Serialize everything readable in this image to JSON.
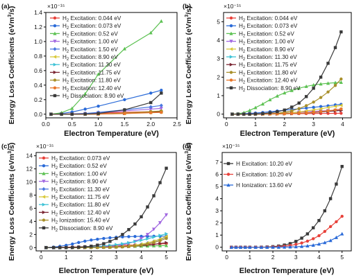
{
  "figure": {
    "y_axis_label_top": "Energy Loss Coefficients (eVm³/s)",
    "y_axis_label_bottom": "Energy Loss Coefficients (eVm³/s)",
    "x_axis_label": "Electron Temperature (eV)"
  },
  "chart_data": [
    {
      "panel_label": "(a)",
      "type": "line",
      "xlabel": "Electron Temperature (eV)",
      "ylabel": "Energy Loss Coefficients (eVm³/s)",
      "y_multiplier": "×10⁻¹⁵",
      "xlim": [
        0,
        2.5
      ],
      "ylim": [
        -0.05,
        1.4
      ],
      "xticks": [
        "0.0",
        "0.5",
        "1.0",
        "1.5",
        "2.0",
        "2.5"
      ],
      "yticks": [
        "0.0",
        "0.2",
        "0.4",
        "0.6",
        "0.8",
        "1.0",
        "1.2",
        "1.4"
      ],
      "legend_position": "left",
      "x": [
        0.1,
        0.3,
        0.5,
        0.75,
        1.0,
        1.5,
        2.0,
        2.2
      ],
      "series": [
        {
          "name": "H₂ Excitation: 0.044 eV",
          "color": "#e8413a",
          "marker": "circle",
          "values": [
            0.0,
            0.002,
            0.005,
            0.01,
            0.015,
            0.025,
            0.035,
            0.04
          ]
        },
        {
          "name": "H₂ Excitation: 0.073 eV",
          "color": "#2a6ad8",
          "marker": "circle",
          "values": [
            0.0,
            0.01,
            0.03,
            0.07,
            0.11,
            0.2,
            0.29,
            0.33
          ]
        },
        {
          "name": "H₂ Excitation: 0.52 eV",
          "color": "#5cc152",
          "marker": "triangle-up",
          "values": [
            0.0,
            0.02,
            0.08,
            0.28,
            0.55,
            0.9,
            1.12,
            1.28
          ]
        },
        {
          "name": "H₂ Excitation: 1.00 eV",
          "color": "#a066e0",
          "marker": "triangle-down",
          "values": [
            0.0,
            0.0,
            0.002,
            0.008,
            0.02,
            0.045,
            0.07,
            0.08
          ]
        },
        {
          "name": "H₂ Excitation: 1.50 eV",
          "color": "#4a78e0",
          "marker": "diamond",
          "values": [
            0.0,
            0.0,
            0.003,
            0.01,
            0.025,
            0.06,
            0.1,
            0.12
          ]
        },
        {
          "name": "H₂ Excitation: 8.90 eV",
          "color": "#d9c93a",
          "marker": "triangle-left",
          "values": [
            0.0,
            0.0,
            0.0,
            0.0,
            0.002,
            0.01,
            0.025,
            0.03
          ]
        },
        {
          "name": "H₂ Excitation: 11.30 eV",
          "color": "#3fc3d6",
          "marker": "triangle-right",
          "values": [
            0.0,
            0.0,
            0.0,
            0.0,
            0.002,
            0.012,
            0.03,
            0.04
          ]
        },
        {
          "name": "H₂ Excitation: 11.75 eV",
          "color": "#7a2432",
          "marker": "triangle-right",
          "values": [
            0.0,
            0.0,
            0.0,
            0.0,
            0.002,
            0.012,
            0.028,
            0.035
          ]
        },
        {
          "name": "H₂ Excitation: 11.80 eV",
          "color": "#a88f2a",
          "marker": "circle",
          "values": [
            0.0,
            0.0,
            0.0,
            0.0,
            0.002,
            0.015,
            0.035,
            0.045
          ]
        },
        {
          "name": "H₂ Excitation: 12.40 eV",
          "color": "#e8762a",
          "marker": "circle",
          "values": [
            0.0,
            0.0,
            0.0,
            0.0,
            0.001,
            0.008,
            0.02,
            0.025
          ]
        },
        {
          "name": "H₂ Dissociation: 8.90 eV",
          "color": "#3a3a3a",
          "marker": "square",
          "values": [
            0.0,
            0.0,
            0.0,
            0.002,
            0.01,
            0.06,
            0.16,
            0.29
          ]
        }
      ]
    },
    {
      "panel_label": "(b)",
      "type": "line",
      "xlabel": "Electron Temperature (eV)",
      "ylabel": "Energy Loss Coefficients (eVm³/s)",
      "y_multiplier": "×10⁻¹⁵",
      "xlim": [
        -0.1,
        4.3
      ],
      "ylim": [
        -0.2,
        5.5
      ],
      "xticks": [
        "0",
        "1",
        "2",
        "3",
        "4"
      ],
      "yticks": [
        "0",
        "1",
        "2",
        "3",
        "4",
        "5"
      ],
      "legend_position": "left",
      "x": [
        0.2,
        0.4,
        0.6,
        0.8,
        1.0,
        1.25,
        1.5,
        1.75,
        2.0,
        2.25,
        2.5,
        2.75,
        3.0,
        3.25,
        3.5,
        3.75,
        3.95
      ],
      "series": [
        {
          "name": "H₂ Excitation: 0.044 eV",
          "color": "#e8413a",
          "marker": "circle",
          "values": [
            0.0,
            0.002,
            0.004,
            0.006,
            0.008,
            0.011,
            0.014,
            0.017,
            0.02,
            0.023,
            0.026,
            0.03,
            0.033,
            0.036,
            0.04,
            0.043,
            0.046
          ]
        },
        {
          "name": "H₂ Excitation: 0.073 eV",
          "color": "#2a6ad8",
          "marker": "circle",
          "values": [
            0.0,
            0.01,
            0.025,
            0.04,
            0.06,
            0.09,
            0.13,
            0.17,
            0.21,
            0.25,
            0.29,
            0.33,
            0.37,
            0.41,
            0.45,
            0.5,
            0.53
          ]
        },
        {
          "name": "H₂ Excitation: 0.52 eV",
          "color": "#5cc152",
          "marker": "triangle-up",
          "values": [
            0.0,
            0.02,
            0.08,
            0.2,
            0.35,
            0.55,
            0.78,
            0.98,
            1.15,
            1.28,
            1.4,
            1.5,
            1.58,
            1.63,
            1.67,
            1.7,
            1.72
          ]
        },
        {
          "name": "H₂ Excitation: 1.00 eV",
          "color": "#a066e0",
          "marker": "triangle-down",
          "values": [
            0.0,
            0.0,
            0.002,
            0.005,
            0.01,
            0.02,
            0.035,
            0.05,
            0.07,
            0.09,
            0.11,
            0.13,
            0.15,
            0.17,
            0.19,
            0.21,
            0.22
          ]
        },
        {
          "name": "H₂ Excitation: 8.90 eV",
          "color": "#d9c93a",
          "marker": "triangle-left",
          "values": [
            0.0,
            0.0,
            0.0,
            0.0,
            0.0,
            0.005,
            0.012,
            0.025,
            0.05,
            0.08,
            0.12,
            0.17,
            0.23,
            0.29,
            0.36,
            0.42,
            0.47
          ]
        },
        {
          "name": "H₂ Excitation: 11.30 eV",
          "color": "#3fc3d6",
          "marker": "triangle-right",
          "values": [
            0.0,
            0.0,
            0.0,
            0.0,
            0.0,
            0.002,
            0.006,
            0.012,
            0.02,
            0.035,
            0.05,
            0.07,
            0.09,
            0.12,
            0.15,
            0.18,
            0.2
          ]
        },
        {
          "name": "H₂ Excitation: 11.75 eV",
          "color": "#7a2432",
          "marker": "triangle-right",
          "values": [
            0.0,
            0.0,
            0.0,
            0.0,
            0.0,
            0.002,
            0.006,
            0.012,
            0.02,
            0.035,
            0.05,
            0.07,
            0.09,
            0.12,
            0.15,
            0.18,
            0.2
          ]
        },
        {
          "name": "H₂ Excitation: 11.80 eV",
          "color": "#a88f2a",
          "marker": "circle",
          "values": [
            0.0,
            0.0,
            0.0,
            0.0,
            0.0,
            0.005,
            0.02,
            0.05,
            0.1,
            0.18,
            0.3,
            0.46,
            0.65,
            0.9,
            1.2,
            1.55,
            1.9
          ]
        },
        {
          "name": "H₂ Excitation: 12.40 eV",
          "color": "#e8762a",
          "marker": "circle",
          "values": [
            0.0,
            0.0,
            0.0,
            0.0,
            0.0,
            0.002,
            0.006,
            0.012,
            0.02,
            0.035,
            0.05,
            0.07,
            0.1,
            0.14,
            0.18,
            0.23,
            0.28
          ]
        },
        {
          "name": "H₂ Dissociation: 8.90 eV",
          "color": "#3a3a3a",
          "marker": "square",
          "values": [
            0.0,
            0.0,
            0.0,
            0.0,
            0.01,
            0.03,
            0.07,
            0.13,
            0.22,
            0.38,
            0.6,
            0.95,
            1.4,
            2.0,
            2.75,
            3.6,
            4.45
          ]
        }
      ]
    },
    {
      "panel_label": "(c)",
      "type": "line",
      "xlabel": "Electron Temperature (eV)",
      "ylabel": "Energy Loss Coefficients (eVm³/s)",
      "y_multiplier": "×10⁻¹⁵",
      "xlim": [
        -0.2,
        5.4
      ],
      "ylim": [
        -0.5,
        14.5
      ],
      "xticks": [
        "0",
        "1",
        "2",
        "3",
        "4",
        "5"
      ],
      "yticks": [
        "0",
        "2",
        "4",
        "6",
        "8",
        "10",
        "12",
        "14"
      ],
      "legend_position": "left",
      "x": [
        0.2,
        0.5,
        0.75,
        1.0,
        1.25,
        1.5,
        1.75,
        2.0,
        2.25,
        2.5,
        2.75,
        3.0,
        3.25,
        3.5,
        3.75,
        4.0,
        4.25,
        4.5,
        4.75,
        5.0
      ],
      "series": [
        {
          "name": "H₂ Excitation: 0.073 eV",
          "color": "#e8413a",
          "marker": "circle",
          "values": [
            0.0,
            0.02,
            0.04,
            0.06,
            0.08,
            0.11,
            0.14,
            0.17,
            0.2,
            0.23,
            0.26,
            0.3,
            0.33,
            0.37,
            0.41,
            0.45,
            0.49,
            0.53,
            0.57,
            0.61
          ]
        },
        {
          "name": "H₂ Excitation: 0.52 eV",
          "color": "#2a6ad8",
          "marker": "circle",
          "values": [
            0.0,
            0.08,
            0.2,
            0.35,
            0.55,
            0.78,
            0.98,
            1.15,
            1.28,
            1.4,
            1.5,
            1.58,
            1.63,
            1.67,
            1.7,
            1.72,
            1.73,
            1.74,
            1.74,
            1.74
          ]
        },
        {
          "name": "H₂ Excitation: 1.00 eV",
          "color": "#5cc152",
          "marker": "triangle-up",
          "values": [
            0.0,
            0.002,
            0.005,
            0.01,
            0.02,
            0.035,
            0.05,
            0.07,
            0.09,
            0.11,
            0.13,
            0.15,
            0.17,
            0.19,
            0.21,
            0.23,
            0.25,
            0.27,
            0.29,
            0.31
          ]
        },
        {
          "name": "H₂ Excitation: 8.90 eV",
          "color": "#a066e0",
          "marker": "triangle-down",
          "values": [
            0.0,
            0.0,
            0.0,
            0.0,
            0.005,
            0.012,
            0.025,
            0.05,
            0.08,
            0.13,
            0.2,
            0.3,
            0.45,
            0.65,
            0.95,
            1.4,
            2.0,
            2.8,
            3.8,
            5.0
          ]
        },
        {
          "name": "H₂ Excitation: 11.30 eV",
          "color": "#4a78e0",
          "marker": "diamond",
          "values": [
            0.0,
            0.0,
            0.0,
            0.0,
            0.002,
            0.006,
            0.012,
            0.02,
            0.035,
            0.05,
            0.08,
            0.12,
            0.18,
            0.25,
            0.35,
            0.5,
            0.7,
            0.95,
            1.25,
            1.6
          ]
        },
        {
          "name": "H₂ Excitation: 11.75 eV",
          "color": "#d9c93a",
          "marker": "triangle-left",
          "values": [
            0.0,
            0.0,
            0.0,
            0.0,
            0.002,
            0.006,
            0.012,
            0.02,
            0.035,
            0.05,
            0.08,
            0.12,
            0.18,
            0.26,
            0.37,
            0.52,
            0.72,
            0.98,
            1.3,
            1.7
          ]
        },
        {
          "name": "H₂ Excitation: 11.80 eV",
          "color": "#3fc3d6",
          "marker": "triangle-right",
          "values": [
            0.0,
            0.0,
            0.0,
            0.0,
            0.005,
            0.02,
            0.05,
            0.1,
            0.16,
            0.24,
            0.34,
            0.45,
            0.58,
            0.74,
            0.92,
            1.12,
            1.35,
            1.6,
            1.85,
            2.1
          ]
        },
        {
          "name": "H₂ Excitation: 12.40 eV",
          "color": "#7a2432",
          "marker": "triangle-right",
          "values": [
            0.0,
            0.0,
            0.0,
            0.0,
            0.002,
            0.006,
            0.012,
            0.02,
            0.035,
            0.05,
            0.07,
            0.1,
            0.14,
            0.19,
            0.25,
            0.32,
            0.4,
            0.5,
            0.62,
            0.75
          ]
        },
        {
          "name": "H₂ Ionization: 15.40 eV",
          "color": "#a88f2a",
          "marker": "circle",
          "values": [
            0.0,
            0.0,
            0.0,
            0.0,
            0.0,
            0.0,
            0.002,
            0.005,
            0.01,
            0.02,
            0.035,
            0.06,
            0.1,
            0.16,
            0.25,
            0.38,
            0.55,
            0.78,
            1.05,
            1.4
          ]
        },
        {
          "name": "H₂ Dissociation: 8.90 eV",
          "color": "#3a3a3a",
          "marker": "square",
          "values": [
            0.0,
            0.0,
            0.0,
            0.01,
            0.03,
            0.07,
            0.13,
            0.22,
            0.38,
            0.6,
            0.95,
            1.4,
            2.0,
            2.75,
            3.6,
            4.7,
            6.2,
            7.9,
            9.9,
            12.1
          ]
        }
      ]
    },
    {
      "panel_label": "(d)",
      "type": "line",
      "xlabel": "Electron Temperature (eV)",
      "ylabel": "Energy Loss Coefficients (eVm³/s)",
      "y_multiplier": "×10⁻¹⁵",
      "xlim": [
        -0.2,
        5.4
      ],
      "ylim": [
        -0.3,
        7.8
      ],
      "xticks": [
        "0",
        "1",
        "2",
        "3",
        "4",
        "5"
      ],
      "yticks": [
        "0",
        "1",
        "2",
        "3",
        "4",
        "5",
        "6",
        "7"
      ],
      "legend_position": "top-left",
      "x": [
        0.2,
        0.4,
        0.6,
        0.8,
        1.0,
        1.25,
        1.5,
        1.75,
        2.0,
        2.25,
        2.5,
        2.75,
        3.0,
        3.25,
        3.5,
        3.75,
        4.0,
        4.25,
        4.5,
        4.75,
        5.0
      ],
      "series": [
        {
          "name": "H Excitation: 10.20 eV",
          "color": "#3a3a3a",
          "marker": "square",
          "values": [
            0.0,
            0.0,
            0.0,
            0.0,
            0.0,
            0.0,
            0.005,
            0.02,
            0.05,
            0.1,
            0.18,
            0.3,
            0.48,
            0.75,
            1.1,
            1.6,
            2.2,
            3.0,
            4.0,
            5.2,
            6.65
          ]
        },
        {
          "name": "H Excitation: 10.20 eV",
          "color": "#e8413a",
          "marker": "circle",
          "values": [
            0.0,
            0.0,
            0.0,
            0.0,
            0.0,
            0.0,
            0.003,
            0.01,
            0.025,
            0.05,
            0.09,
            0.15,
            0.23,
            0.35,
            0.5,
            0.7,
            0.95,
            1.3,
            1.7,
            2.1,
            2.55
          ]
        },
        {
          "name": "H Ionization: 13.60 eV",
          "color": "#2a6ad8",
          "marker": "triangle-up",
          "values": [
            0.0,
            0.0,
            0.0,
            0.0,
            0.0,
            0.0,
            0.0,
            0.0,
            0.002,
            0.006,
            0.012,
            0.022,
            0.04,
            0.07,
            0.11,
            0.17,
            0.26,
            0.38,
            0.55,
            0.8,
            1.1
          ]
        }
      ]
    }
  ]
}
